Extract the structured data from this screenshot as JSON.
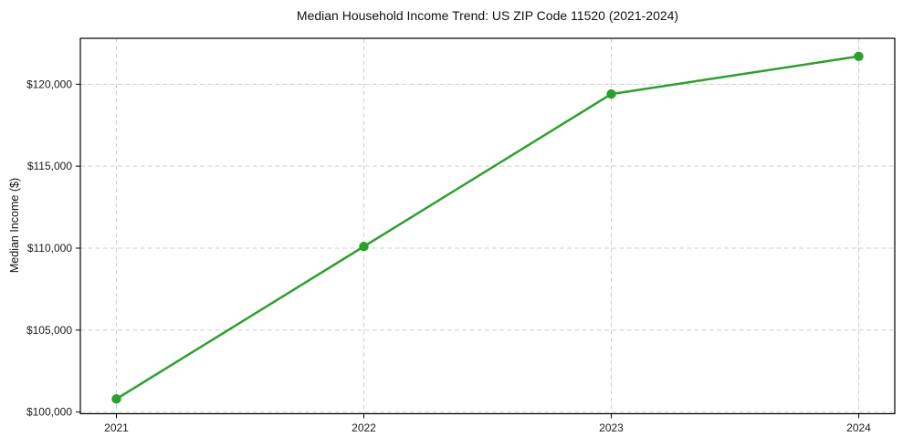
{
  "chart_data": {
    "type": "line",
    "title": "Median Household Income Trend: US ZIP Code 11520 (2021-2024)",
    "ylabel": "Median Income ($)",
    "xlabel": "",
    "x": [
      2021,
      2022,
      2023,
      2024
    ],
    "xtick_labels": [
      "2021",
      "2022",
      "2023",
      "2024"
    ],
    "values": [
      100800,
      110100,
      119400,
      121700
    ],
    "yticks": [
      100000,
      105000,
      110000,
      115000,
      120000
    ],
    "ytick_labels": [
      "$100,000",
      "$105,000",
      "$110,000",
      "$115,000",
      "$120,000"
    ],
    "ylim": [
      99900,
      122800
    ],
    "grid": true,
    "legend": "none",
    "line_color": "#2ca02c",
    "marker_color": "#2ca02c",
    "grid_color": "#cfcfcf",
    "spine_color": "#000000"
  }
}
